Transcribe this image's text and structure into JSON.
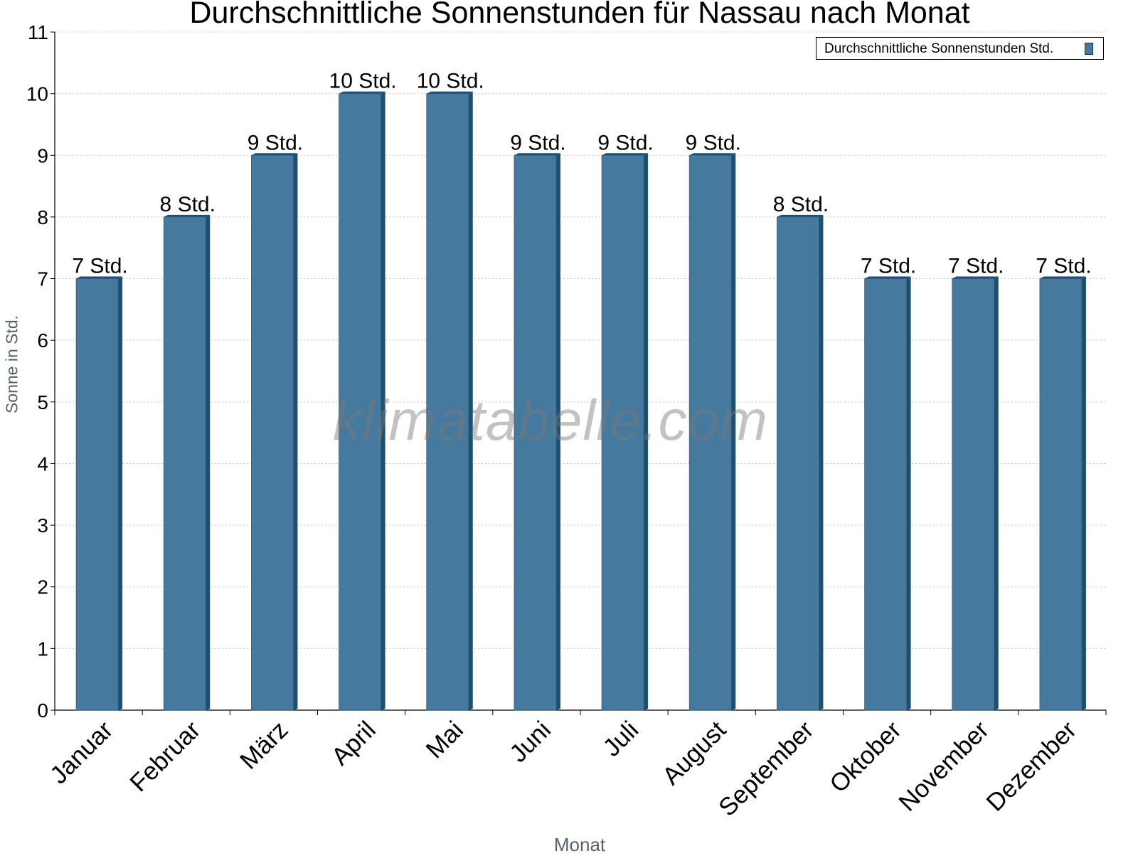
{
  "chart_data": {
    "type": "bar",
    "title": "Durchschnittliche Sonnenstunden für Nassau nach Monat",
    "xlabel": "Monat",
    "ylabel": "Sonne in Std.",
    "categories": [
      "Januar",
      "Februar",
      "März",
      "April",
      "Mai",
      "Juni",
      "Juli",
      "August",
      "September",
      "Oktober",
      "November",
      "Dezember"
    ],
    "series": [
      {
        "name": "Durchschnittliche Sonnenstunden Std.",
        "values": [
          7,
          8,
          9,
          10,
          10,
          9,
          9,
          9,
          8,
          7,
          7,
          7
        ],
        "value_labels": [
          "7 Std.",
          "8 Std.",
          "9 Std.",
          "10 Std.",
          "10 Std.",
          "9 Std.",
          "9 Std.",
          "9 Std.",
          "8 Std.",
          "7 Std.",
          "7 Std.",
          "7 Std."
        ]
      }
    ],
    "ylim": [
      0,
      11
    ],
    "yticks": [
      0,
      1,
      2,
      3,
      4,
      5,
      6,
      7,
      8,
      9,
      10,
      11
    ],
    "grid": true,
    "legend_position": "top-right",
    "bar_color": "#457a9e",
    "bar_side_color": "#1e4e70",
    "watermark": "klimatabelle.com"
  }
}
